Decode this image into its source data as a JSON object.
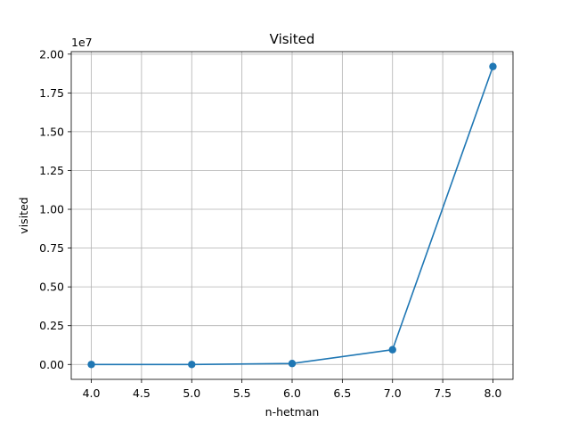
{
  "chart_data": {
    "type": "line",
    "title": "Visited",
    "xlabel": "n-hetman",
    "ylabel": "visited",
    "y_offset_label": "1e7",
    "x": [
      4.0,
      5.0,
      6.0,
      7.0,
      8.0
    ],
    "series": [
      {
        "values": [
          0,
          0,
          60000,
          950000,
          19200000
        ],
        "color": "#1f77b4",
        "marker": "circle"
      }
    ],
    "xlim": [
      3.8,
      8.2
    ],
    "ylim": [
      -960000,
      20160000
    ],
    "x_ticks": [
      4.0,
      4.5,
      5.0,
      5.5,
      6.0,
      6.5,
      7.0,
      7.5,
      8.0
    ],
    "x_tick_labels": [
      "4.0",
      "4.5",
      "5.0",
      "5.5",
      "6.0",
      "6.5",
      "7.0",
      "7.5",
      "8.0"
    ],
    "y_ticks": [
      0,
      2500000,
      5000000,
      7500000,
      10000000,
      12500000,
      15000000,
      17500000,
      20000000
    ],
    "y_tick_labels": [
      "0.00",
      "0.25",
      "0.50",
      "0.75",
      "1.00",
      "1.25",
      "1.50",
      "1.75",
      "2.00"
    ],
    "grid": true,
    "legend": "none"
  }
}
